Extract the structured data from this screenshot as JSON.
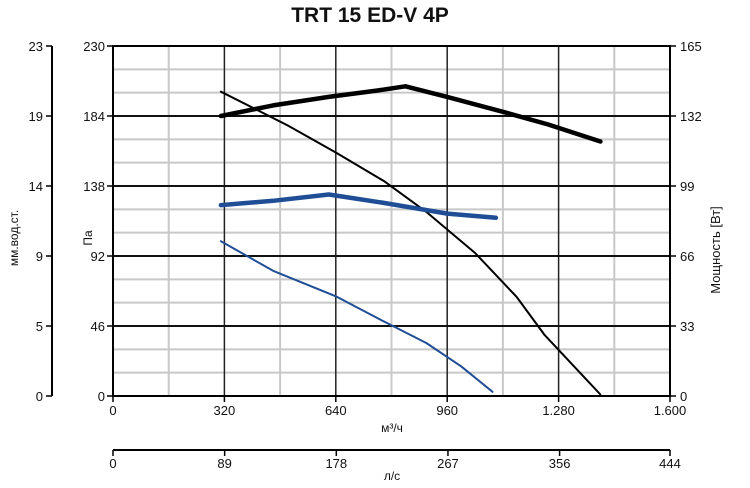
{
  "chart_data": {
    "type": "line",
    "title": "TRT 15 ED-V 4P",
    "x": {
      "label": "м³/ч",
      "lim": [
        0,
        1600
      ],
      "ticks": [
        0,
        320,
        640,
        960,
        1280,
        1600
      ],
      "tick_labels": [
        "0",
        "320",
        "640",
        "960",
        "1.280",
        "1.600"
      ]
    },
    "x2": {
      "label": "л/с",
      "lim": [
        0,
        444
      ],
      "ticks": [
        0,
        89,
        178,
        267,
        356,
        444
      ],
      "tick_labels": [
        "0",
        "89",
        "178",
        "267",
        "356",
        "444"
      ]
    },
    "y_left": {
      "label": "Па",
      "lim": [
        0,
        230
      ],
      "ticks": [
        0,
        46,
        92,
        138,
        184,
        230
      ],
      "tick_labels": [
        "0",
        "46",
        "92",
        "138",
        "184",
        "230"
      ]
    },
    "y_left_outer": {
      "label": "мм.вод.ст.",
      "lim": [
        0,
        23
      ],
      "tick_labels": [
        "0",
        "5",
        "9",
        "14",
        "19",
        "23"
      ]
    },
    "y_right": {
      "label": "Мощность [Вт]",
      "lim": [
        0,
        165
      ],
      "ticks": [
        0,
        33,
        66,
        99,
        132,
        165
      ],
      "tick_labels": [
        "0",
        "33",
        "66",
        "99",
        "132",
        "165"
      ]
    },
    "grid": true,
    "series": [
      {
        "axis": "left",
        "color": "#000000",
        "width": "thin",
        "x": [
          310,
          500,
          640,
          780,
          900,
          1040,
          1160,
          1240,
          1400
        ],
        "y": [
          200,
          178,
          160,
          141,
          121,
          94,
          65,
          40,
          1
        ]
      },
      {
        "axis": "right",
        "color": "#000000",
        "width": "thick",
        "x": [
          310,
          460,
          620,
          760,
          840,
          960,
          1120,
          1250,
          1400
        ],
        "y": [
          132,
          137,
          141,
          144,
          146,
          141,
          134,
          128,
          120
        ]
      },
      {
        "axis": "right",
        "color": "#1f4e96",
        "width": "thin",
        "x": [
          310,
          460,
          640,
          780,
          900,
          1000,
          1090
        ],
        "y": [
          73,
          59,
          47,
          35,
          25,
          14,
          2
        ]
      },
      {
        "axis": "right",
        "color": "#1f4e96",
        "width": "thick",
        "x": [
          310,
          460,
          620,
          660,
          780,
          960,
          1100
        ],
        "y": [
          90,
          92,
          95,
          94,
          91,
          86,
          84
        ]
      }
    ]
  }
}
